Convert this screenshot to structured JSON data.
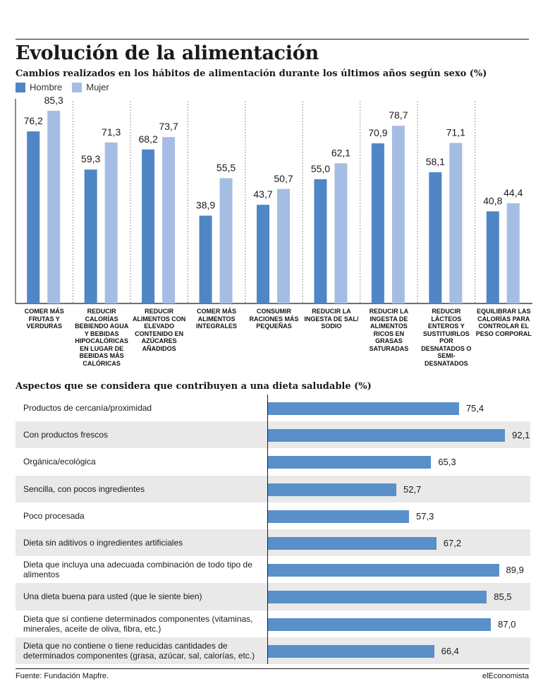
{
  "title": "Evolución de la alimentación",
  "subtitle": "Cambios realizados en los hábitos de alimentación durante los últimos años según sexo (%)",
  "colors": {
    "hombre": "#4f86c6",
    "mujer": "#a5bde3",
    "hbar": "#5a8fc9"
  },
  "chart_data": [
    {
      "type": "bar",
      "title": "Cambios realizados en los hábitos de alimentación durante los últimos años según sexo (%)",
      "categories": [
        "COMER MÁS FRUTAS Y VERDURAS",
        "REDUCIR CALORÍAS BEBIENDO AGUA Y BEBIDAS HIPOCALÓRICAS EN LUGAR DE BEBIDAS MÁS CALÓRICAS",
        "REDUCIR ALIMENTOS CON ELEVADO CONTENIDO EN AZÚCARES AÑADIDOS",
        "COMER MÁS ALIMENTOS INTEGRALES",
        "CONSUMIR RACIONES MÁS PEQUEÑAS",
        "REDUCIR LA INGESTA DE SAL/ SODIO",
        "REDUCIR LA INGESTA DE ALIMENTOS RICOS EN GRASAS SATURADAS",
        "REDUCIR LÁCTEOS ENTEROS Y SUSTITUIRLOS POR DESNATADOS O SEMI- DESNATADOS",
        "EQUILIBRAR LAS CALORÍAS PARA CONTROLAR EL PESO CORPORAL"
      ],
      "series": [
        {
          "name": "Hombre",
          "values": [
            76.2,
            59.3,
            68.2,
            38.9,
            43.7,
            55.0,
            70.9,
            58.1,
            40.8
          ],
          "labels": [
            "76,2",
            "59,3",
            "68,2",
            "38,9",
            "43,7",
            "55,0",
            "70,9",
            "58,1",
            "40,8"
          ]
        },
        {
          "name": "Mujer",
          "values": [
            85.3,
            71.3,
            73.7,
            55.5,
            50.7,
            62.1,
            78.7,
            71.1,
            44.4
          ],
          "labels": [
            "85,3",
            "71,3",
            "73,7",
            "55,5",
            "50,7",
            "62,1",
            "78,7",
            "71,1",
            "44,4"
          ]
        }
      ],
      "ylim": [
        0,
        100
      ],
      "legend": "top-left"
    },
    {
      "type": "bar",
      "orientation": "horizontal",
      "title": "Aspectos que se considera que contribuyen a una dieta saludable (%)",
      "categories": [
        "Productos de cercanía/proximidad",
        "Con productos frescos",
        "Orgánica/ecológica",
        "Sencilla, con pocos ingredientes",
        "Poco procesada",
        "Dieta sin aditivos o ingredientes artificiales",
        "Dieta que incluya una adecuada combinación de todo tipo de alimentos",
        "Una dieta buena para usted (que le siente bien)",
        "Dieta que sí contiene determinados componentes (vitaminas, minerales, aceite de oliva, fibra, etc.)",
        "Dieta que no contiene o tiene reducidas cantidades de determinados componentes (grasa, azúcar, sal, calorías, etc.)"
      ],
      "values": [
        75.4,
        92.1,
        65.3,
        52.7,
        57.3,
        67.2,
        89.9,
        85.5,
        87.0,
        66.4
      ],
      "labels": [
        "75,4",
        "92,1",
        "65,3",
        "52,7",
        "57,3",
        "67,2",
        "89,9",
        "85,5",
        "87,0",
        "66,4"
      ],
      "xlim": [
        0,
        100
      ]
    }
  ],
  "source": "Fuente: Fundación Mapfre.",
  "brand": "elEconomista"
}
